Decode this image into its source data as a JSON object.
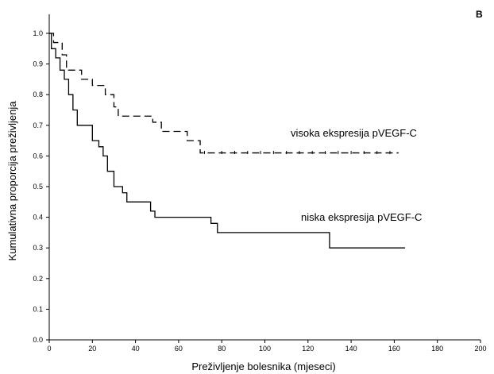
{
  "chart_data": {
    "type": "line",
    "panel_label": "B",
    "title": "",
    "xlabel": "Preživljenje bolesnika (mjeseci)",
    "ylabel": "Kumulativna proporcija preživljenja",
    "xlim": [
      0,
      200
    ],
    "ylim": [
      0,
      1.05
    ],
    "xticks": [
      0,
      20,
      40,
      60,
      80,
      100,
      120,
      140,
      160,
      180,
      200
    ],
    "yticks": [
      "0.0",
      "0.1",
      "0.2",
      "0.3",
      "0.4",
      "0.5",
      "0.6",
      "0.7",
      "0.8",
      "0.9",
      "1.0"
    ],
    "grid": false,
    "step": true,
    "series": [
      {
        "name": "visoka ekspresija pVEGF-C",
        "line_style": "dashed",
        "color": "#000000",
        "censored_marks": true,
        "x": [
          0,
          2,
          6,
          8,
          15,
          20,
          26,
          30,
          32,
          48,
          52,
          64,
          70,
          162
        ],
        "y": [
          1.0,
          0.97,
          0.93,
          0.88,
          0.85,
          0.83,
          0.8,
          0.76,
          0.73,
          0.71,
          0.68,
          0.65,
          0.61,
          0.61
        ],
        "censored_x": [
          72,
          80,
          86,
          92,
          98,
          104,
          110,
          116,
          122,
          128,
          134,
          140,
          146,
          152,
          158
        ]
      },
      {
        "name": "niska ekspresija pVEGF-C",
        "line_style": "solid",
        "color": "#000000",
        "censored_marks": false,
        "x": [
          0,
          1,
          3,
          5,
          7,
          9,
          11,
          13,
          20,
          23,
          25,
          27,
          30,
          34,
          36,
          47,
          49,
          75,
          78,
          130,
          165
        ],
        "y": [
          1.0,
          0.95,
          0.92,
          0.88,
          0.85,
          0.8,
          0.75,
          0.7,
          0.65,
          0.63,
          0.6,
          0.55,
          0.5,
          0.48,
          0.45,
          0.42,
          0.4,
          0.38,
          0.35,
          0.3,
          0.3
        ]
      }
    ]
  }
}
